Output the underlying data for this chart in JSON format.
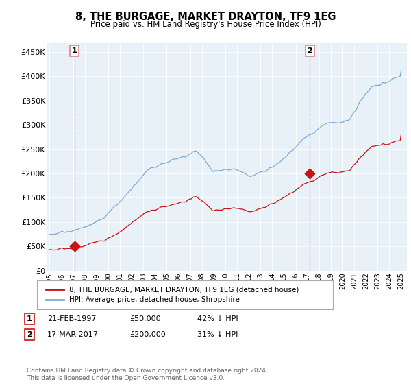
{
  "title": "8, THE BURGAGE, MARKET DRAYTON, TF9 1EG",
  "subtitle": "Price paid vs. HM Land Registry's House Price Index (HPI)",
  "ylabel_ticks": [
    "£0",
    "£50K",
    "£100K",
    "£150K",
    "£200K",
    "£250K",
    "£300K",
    "£350K",
    "£400K",
    "£450K"
  ],
  "ytick_values": [
    0,
    50000,
    100000,
    150000,
    200000,
    250000,
    300000,
    350000,
    400000,
    450000
  ],
  "ylim": [
    0,
    470000
  ],
  "xlim_start": 1994.8,
  "xlim_end": 2025.5,
  "plot_bg_color": "#e8f0f8",
  "hpi_line_color": "#7aaadd",
  "price_line_color": "#cc1111",
  "marker_color": "#cc1111",
  "dashed_color": "#dd8888",
  "sale1_x": 1997.12,
  "sale1_y": 50000,
  "sale2_x": 2017.21,
  "sale2_y": 200000,
  "legend_line1": "8, THE BURGAGE, MARKET DRAYTON, TF9 1EG (detached house)",
  "legend_line2": "HPI: Average price, detached house, Shropshire",
  "footer": "Contains HM Land Registry data © Crown copyright and database right 2024.\nThis data is licensed under the Open Government Licence v3.0.",
  "table_row1": [
    "1",
    "21-FEB-1997",
    "£50,000",
    "42% ↓ HPI"
  ],
  "table_row2": [
    "2",
    "17-MAR-2017",
    "£200,000",
    "31% ↓ HPI"
  ]
}
